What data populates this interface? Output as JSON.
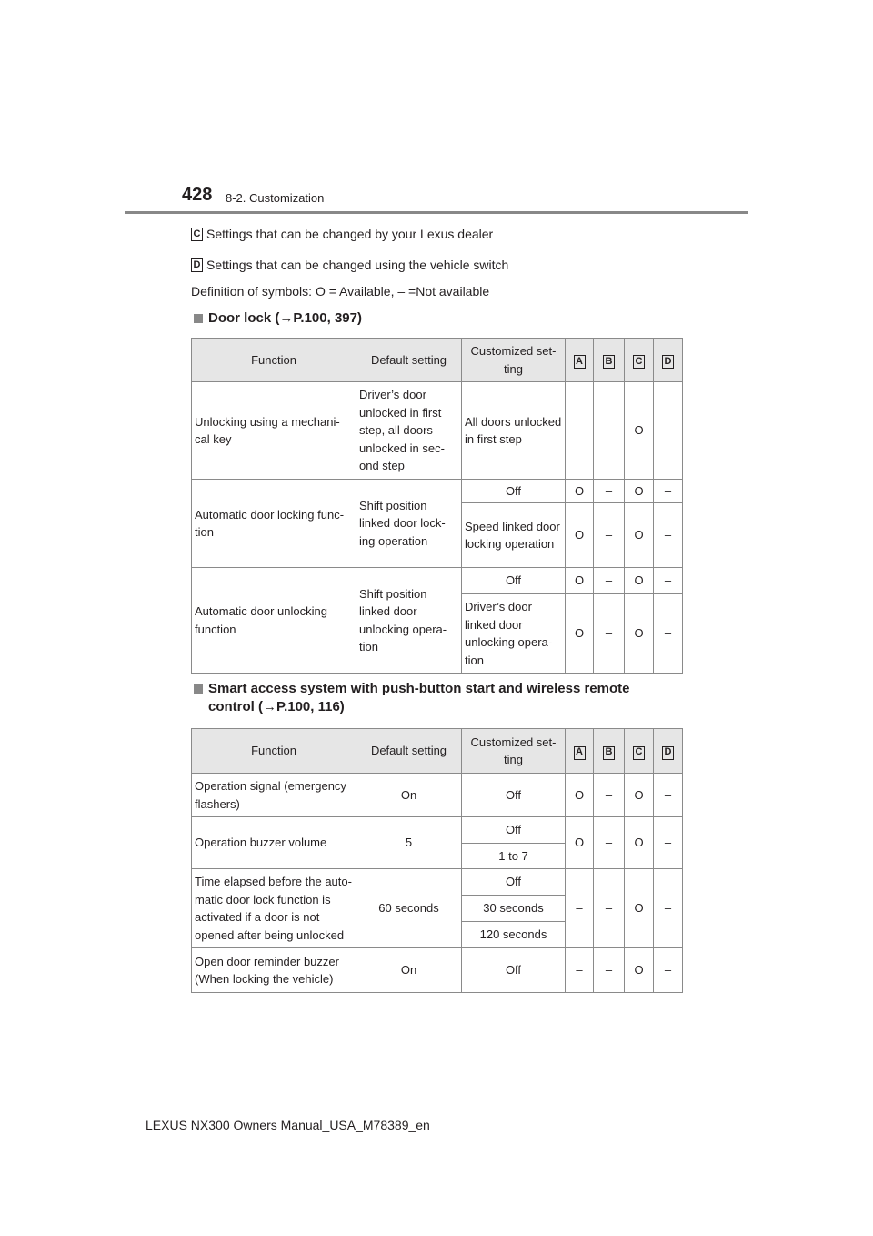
{
  "header": {
    "page_number": "428",
    "section": "8-2. Customization"
  },
  "legend": [
    {
      "box": "C",
      "text": "Settings that can be changed by your Lexus dealer"
    },
    {
      "box": "D",
      "text": "Settings that can be changed using the vehicle switch"
    }
  ],
  "definition": "Definition of symbols: O = Available, – =Not available",
  "columns": [
    "Function",
    "Default setting",
    "Customized set-ting",
    "A",
    "B",
    "C",
    "D"
  ],
  "tables": [
    {
      "heading": "Door lock (→P.100, 397)",
      "rows": [
        {
          "function": "Unlocking using a mechani-cal key",
          "default": "Driver’s door unlocked in first step, all doors unlocked in sec-ond step",
          "options": [
            {
              "value": "All doors unlocked in first step",
              "marks": [
                "–",
                "–",
                "O",
                "–"
              ]
            }
          ]
        },
        {
          "function": "Automatic door locking func-tion",
          "default": "Shift position linked door lock-ing operation",
          "options": [
            {
              "value": "Off",
              "marks": [
                "O",
                "–",
                "O",
                "–"
              ]
            },
            {
              "value": "Speed linked door locking operation",
              "marks": [
                "O",
                "–",
                "O",
                "–"
              ]
            }
          ]
        },
        {
          "function": "Automatic door unlocking function",
          "default": "Shift position linked door unlocking opera-tion",
          "options": [
            {
              "value": "Off",
              "marks": [
                "O",
                "–",
                "O",
                "–"
              ]
            },
            {
              "value": "Driver’s door linked door unlocking opera-tion",
              "marks": [
                "O",
                "–",
                "O",
                "–"
              ]
            }
          ]
        }
      ]
    },
    {
      "heading": "Smart access system with push-button start and wireless remote control (→P.100, 116)",
      "rows": [
        {
          "function": "Operation signal (emergency flashers)",
          "default": "On",
          "options": [
            {
              "value": "Off"
            }
          ],
          "marks": [
            "O",
            "–",
            "O",
            "–"
          ]
        },
        {
          "function": "Operation buzzer volume",
          "default": "5",
          "options": [
            {
              "value": "Off"
            },
            {
              "value": "1 to 7"
            }
          ],
          "marks": [
            "O",
            "–",
            "O",
            "–"
          ]
        },
        {
          "function": "Time elapsed before the auto-matic door lock function is activated if a door is not opened after being unlocked",
          "default": "60 seconds",
          "options": [
            {
              "value": "Off"
            },
            {
              "value": "30 seconds"
            },
            {
              "value": "120 seconds"
            }
          ],
          "marks": [
            "–",
            "–",
            "O",
            "–"
          ]
        },
        {
          "function": "Open door reminder buzzer (When locking the vehicle)",
          "default": "On",
          "options": [
            {
              "value": "Off"
            }
          ],
          "marks": [
            "–",
            "–",
            "O",
            "–"
          ]
        }
      ]
    }
  ],
  "footer": "LEXUS NX300 Owners Manual_USA_M78389_en"
}
